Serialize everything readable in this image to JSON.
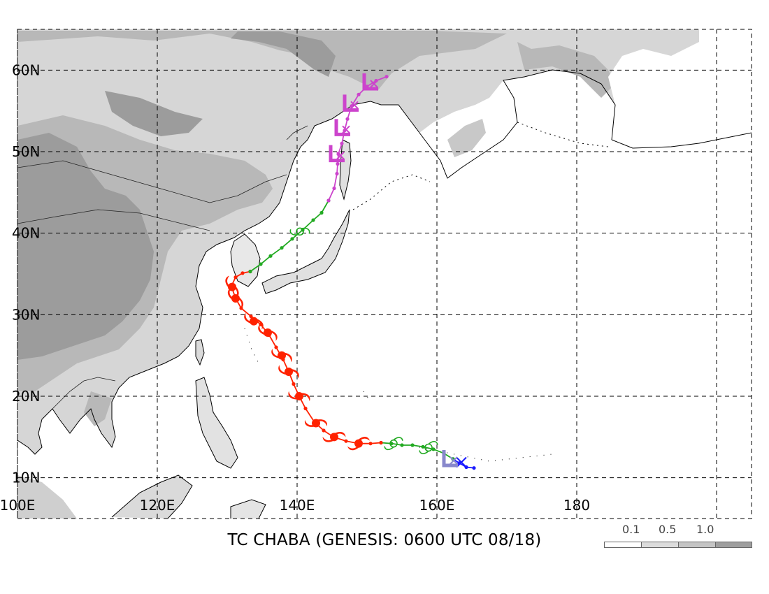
{
  "title": "TC CHABA (GENESIS: 0600 UTC 08/18)",
  "map": {
    "lon_range": [
      100,
      205
    ],
    "lat_range": [
      5,
      65
    ],
    "lat_labels": [
      "10N",
      "20N",
      "30N",
      "40N",
      "50N",
      "60N"
    ],
    "lon_labels": [
      "100E",
      "120E",
      "140E",
      "160E",
      "180"
    ],
    "gridline_style": "dashed",
    "colors": {
      "land_light": "#d8d8d8",
      "land_mid": "#bdbdbd",
      "land_dark": "#a0a0a0",
      "coast": "#000000"
    }
  },
  "legend": {
    "labels": [
      "0.1",
      "0.5",
      "1.0"
    ],
    "colors": [
      "#ffffff",
      "#dcdcdc",
      "#c4c4c4",
      "#9e9e9e"
    ]
  },
  "track": {
    "stages": [
      {
        "stage": "genesis",
        "color": "#1a1aff",
        "symbol": "x-icon",
        "points": [
          [
            165.3,
            11.2
          ],
          [
            164.2,
            11.3
          ],
          [
            163.2,
            11.8
          ],
          [
            162.3,
            12.3
          ]
        ]
      },
      {
        "stage": "tropical-storm",
        "color": "#22aa22",
        "symbol": "tropical-storm-icon",
        "points": [
          [
            162.3,
            12.3
          ],
          [
            161.0,
            13.0
          ],
          [
            159.5,
            13.5
          ],
          [
            158.0,
            13.8
          ],
          [
            156.5,
            14.0
          ],
          [
            155.0,
            14.0
          ],
          [
            153.5,
            14.2
          ],
          [
            152.0,
            14.3
          ]
        ]
      },
      {
        "stage": "typhoon",
        "color": "#ff2200",
        "symbol": "typhoon-icon",
        "points": [
          [
            152.0,
            14.3
          ],
          [
            150.5,
            14.2
          ],
          [
            148.8,
            14.2
          ],
          [
            147.0,
            14.5
          ],
          [
            145.2,
            15.0
          ],
          [
            143.8,
            15.8
          ],
          [
            142.5,
            16.8
          ],
          [
            141.2,
            18.5
          ],
          [
            140.3,
            20.0
          ],
          [
            139.5,
            21.5
          ],
          [
            138.8,
            23.0
          ],
          [
            138.0,
            24.5
          ],
          [
            137.0,
            26.0
          ],
          [
            136.0,
            27.5
          ],
          [
            134.8,
            28.8
          ],
          [
            133.4,
            29.8
          ],
          [
            132.0,
            30.8
          ],
          [
            131.2,
            32.0
          ],
          [
            130.6,
            33.5
          ],
          [
            131.2,
            34.6
          ],
          [
            132.2,
            35.1
          ],
          [
            133.3,
            35.3
          ]
        ]
      },
      {
        "stage": "extratropical-storm",
        "color": "#22aa22",
        "symbol": "tropical-storm-icon",
        "points": [
          [
            133.3,
            35.3
          ],
          [
            134.8,
            36.2
          ],
          [
            136.2,
            37.2
          ],
          [
            137.8,
            38.2
          ],
          [
            139.3,
            39.3
          ],
          [
            140.8,
            40.4
          ],
          [
            142.3,
            41.6
          ],
          [
            143.5,
            42.5
          ],
          [
            144.5,
            44.0
          ]
        ]
      },
      {
        "stage": "extratropical",
        "color": "#cc44cc",
        "symbol": "extratropical-icon",
        "points": [
          [
            144.5,
            44.0
          ],
          [
            145.3,
            45.5
          ],
          [
            145.7,
            47.3
          ],
          [
            145.8,
            48.5
          ],
          [
            145.9,
            49.7
          ],
          [
            146.4,
            51.0
          ],
          [
            146.8,
            52.6
          ],
          [
            147.2,
            54.0
          ],
          [
            147.8,
            55.6
          ],
          [
            148.8,
            57.0
          ],
          [
            150.0,
            58.0
          ],
          [
            151.3,
            58.7
          ],
          [
            152.8,
            59.2
          ]
        ]
      }
    ]
  }
}
